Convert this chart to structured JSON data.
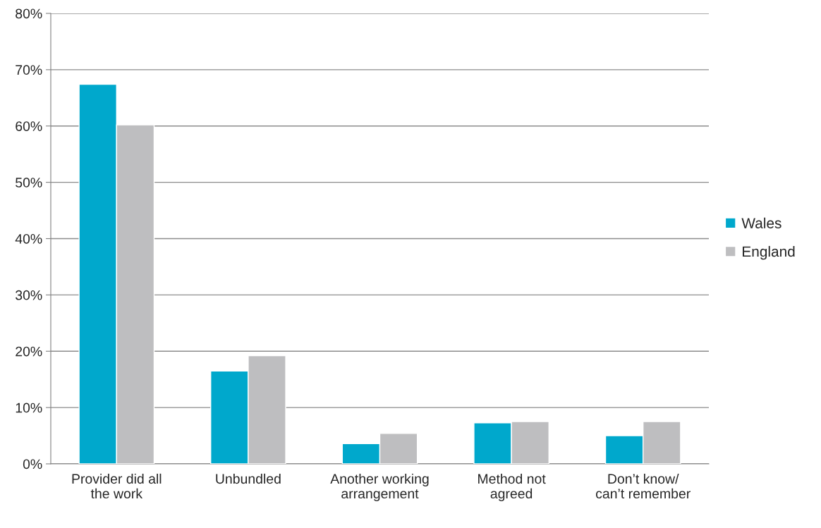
{
  "chart_data": {
    "type": "bar",
    "categories": [
      "Provider did all\nthe work",
      "Unbundled",
      "Another working\narrangement",
      "Method not\nagreed",
      "Don’t know/\ncan’t remember"
    ],
    "series": [
      {
        "name": "Wales",
        "color": "#00a8cc",
        "values": [
          67.4,
          16.5,
          3.6,
          7.3,
          5.0
        ]
      },
      {
        "name": "England",
        "color": "#bebec0",
        "values": [
          60.2,
          19.2,
          5.4,
          7.5,
          7.5
        ]
      }
    ],
    "ylim": [
      0,
      80
    ],
    "yticks": [
      {
        "value": 0,
        "label": "0%"
      },
      {
        "value": 10,
        "label": "10%"
      },
      {
        "value": 20,
        "label": "20%"
      },
      {
        "value": 30,
        "label": "30%"
      },
      {
        "value": 40,
        "label": "40%"
      },
      {
        "value": 50,
        "label": "50%"
      },
      {
        "value": 60,
        "label": "60%"
      },
      {
        "value": 70,
        "label": "70%"
      },
      {
        "value": 80,
        "label": "80%"
      }
    ],
    "grid": "y",
    "legend": "right"
  }
}
